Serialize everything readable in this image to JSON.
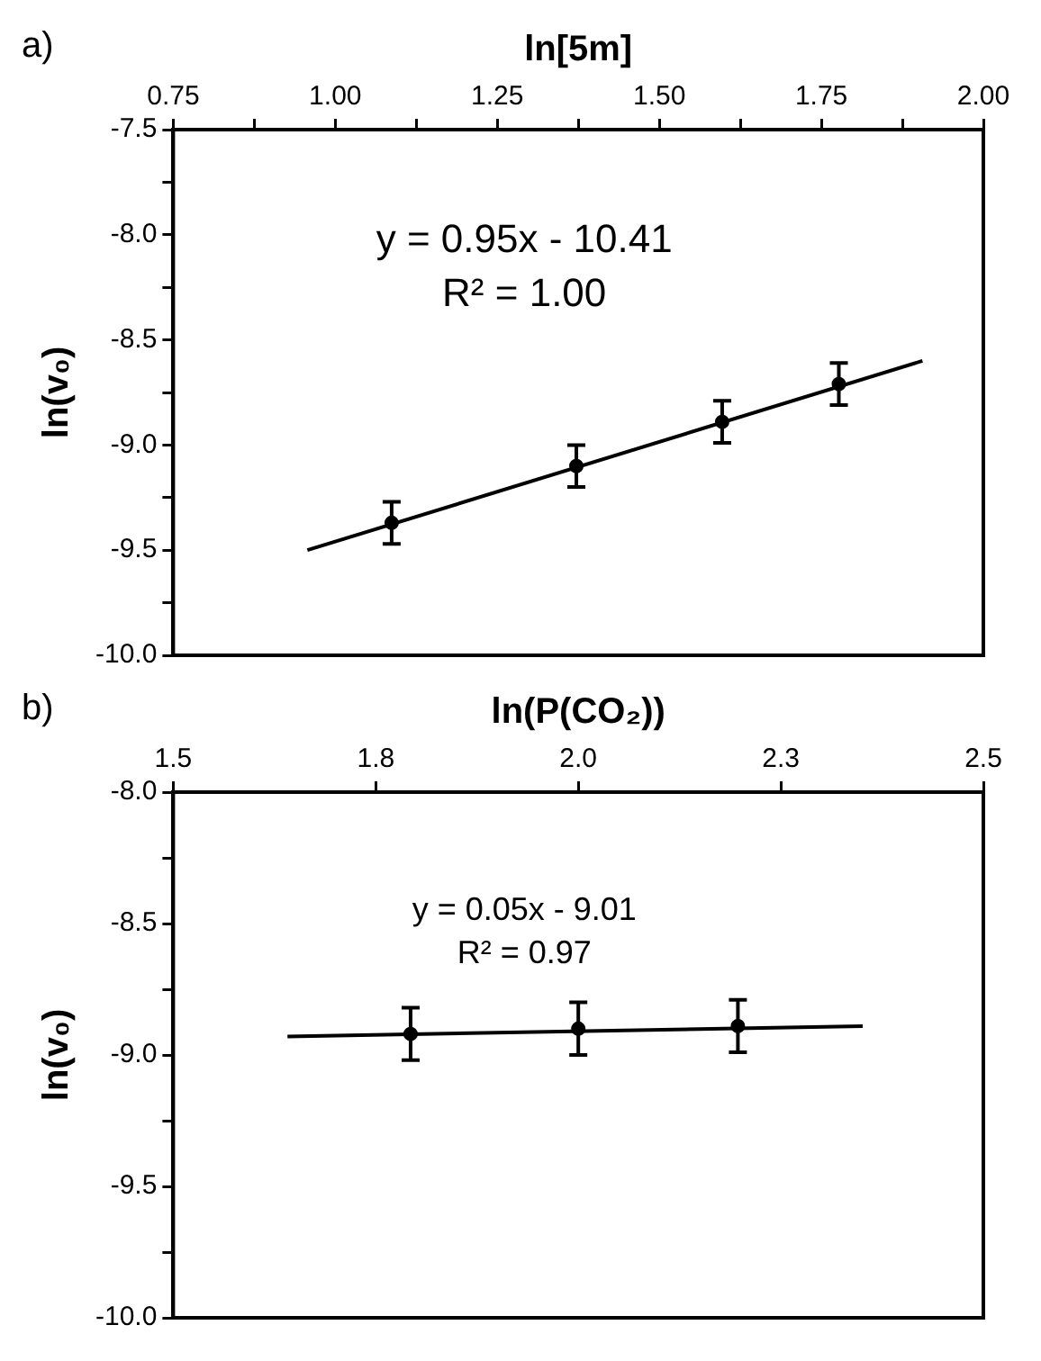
{
  "chart_data": [
    {
      "type": "scatter",
      "title": "a)",
      "xlabel": "ln[5m]",
      "ylabel": "ln(v₀)",
      "xlim": [
        0.75,
        2.0
      ],
      "xticks": [
        0.75,
        {
          "value": 0.875,
          "label": null
        },
        {
          "value": 1,
          "label": "1.00"
        },
        {
          "value": 1.125,
          "label": null
        },
        1.25,
        {
          "value": 1.375,
          "label": null
        },
        {
          "value": 1.5,
          "label": "1.50"
        },
        {
          "value": 1.625,
          "label": null
        },
        1.75,
        {
          "value": 1.875,
          "label": null
        },
        {
          "value": 2,
          "label": "2.00"
        }
      ],
      "ylim": [
        -10,
        -7.5
      ],
      "yticks": [
        {
          "value": -10,
          "label": "-10.0"
        },
        {
          "value": -9.75,
          "label": null
        },
        -9.5,
        {
          "value": -9.25,
          "label": null
        },
        {
          "value": -9,
          "label": "-9.0"
        },
        {
          "value": -8.75,
          "label": null
        },
        -8.5,
        {
          "value": -8.25,
          "label": null
        },
        {
          "value": -8,
          "label": "-8.0"
        },
        {
          "value": -7.75,
          "label": null
        },
        -7.5
      ],
      "grid": false,
      "legend": false,
      "annotations": [
        "y = 0.95x - 10.41",
        "R² = 1.00"
      ],
      "series": [
        {
          "marker": "circle",
          "color": "#000000",
          "x": [
            1.087,
            1.372,
            1.597,
            1.777
          ],
          "values": [
            -9.37,
            -9.1,
            -8.89,
            -8.71
          ],
          "errors": [
            0.1,
            0.1,
            0.1,
            0.1
          ]
        },
        {
          "type": "line",
          "marker": "none",
          "color": "#000000",
          "x": [
            0.957,
            1.906
          ],
          "values": [
            -9.5,
            -8.6
          ]
        }
      ]
    },
    {
      "type": "scatter",
      "title": "b)",
      "xlabel": "ln(P(CO₂))",
      "ylabel": "ln(v₀)",
      "xlim": [
        1.5,
        2.5
      ],
      "xticks": [
        1.5,
        {
          "value": 1.75,
          "label": "1.8"
        },
        {
          "value": 2,
          "label": "2.0"
        },
        {
          "value": 2.25,
          "label": "2.3"
        },
        2.5
      ],
      "ylim": [
        -10,
        -8
      ],
      "yticks": [
        {
          "value": -10,
          "label": "-10.0"
        },
        {
          "value": -9.75,
          "label": null
        },
        -9.5,
        {
          "value": -9.25,
          "label": null
        },
        {
          "value": -9,
          "label": "-9.0"
        },
        {
          "value": -8.75,
          "label": null
        },
        -8.5,
        {
          "value": -8.25,
          "label": null
        },
        {
          "value": -8,
          "label": "-8.0"
        }
      ],
      "grid": false,
      "legend": false,
      "annotations": [
        "y = 0.05x - 9.01",
        "R² = 0.97"
      ],
      "series": [
        {
          "marker": "circle",
          "color": "#000000",
          "x": [
            1.793,
            2.0,
            2.197
          ],
          "values": [
            -8.92,
            -8.9,
            -8.89
          ],
          "errors": [
            0.1,
            0.1,
            0.1
          ]
        },
        {
          "type": "line",
          "marker": "none",
          "color": "#000000",
          "x": [
            1.641,
            2.351
          ],
          "values": [
            -8.93,
            -8.89
          ]
        }
      ]
    }
  ]
}
